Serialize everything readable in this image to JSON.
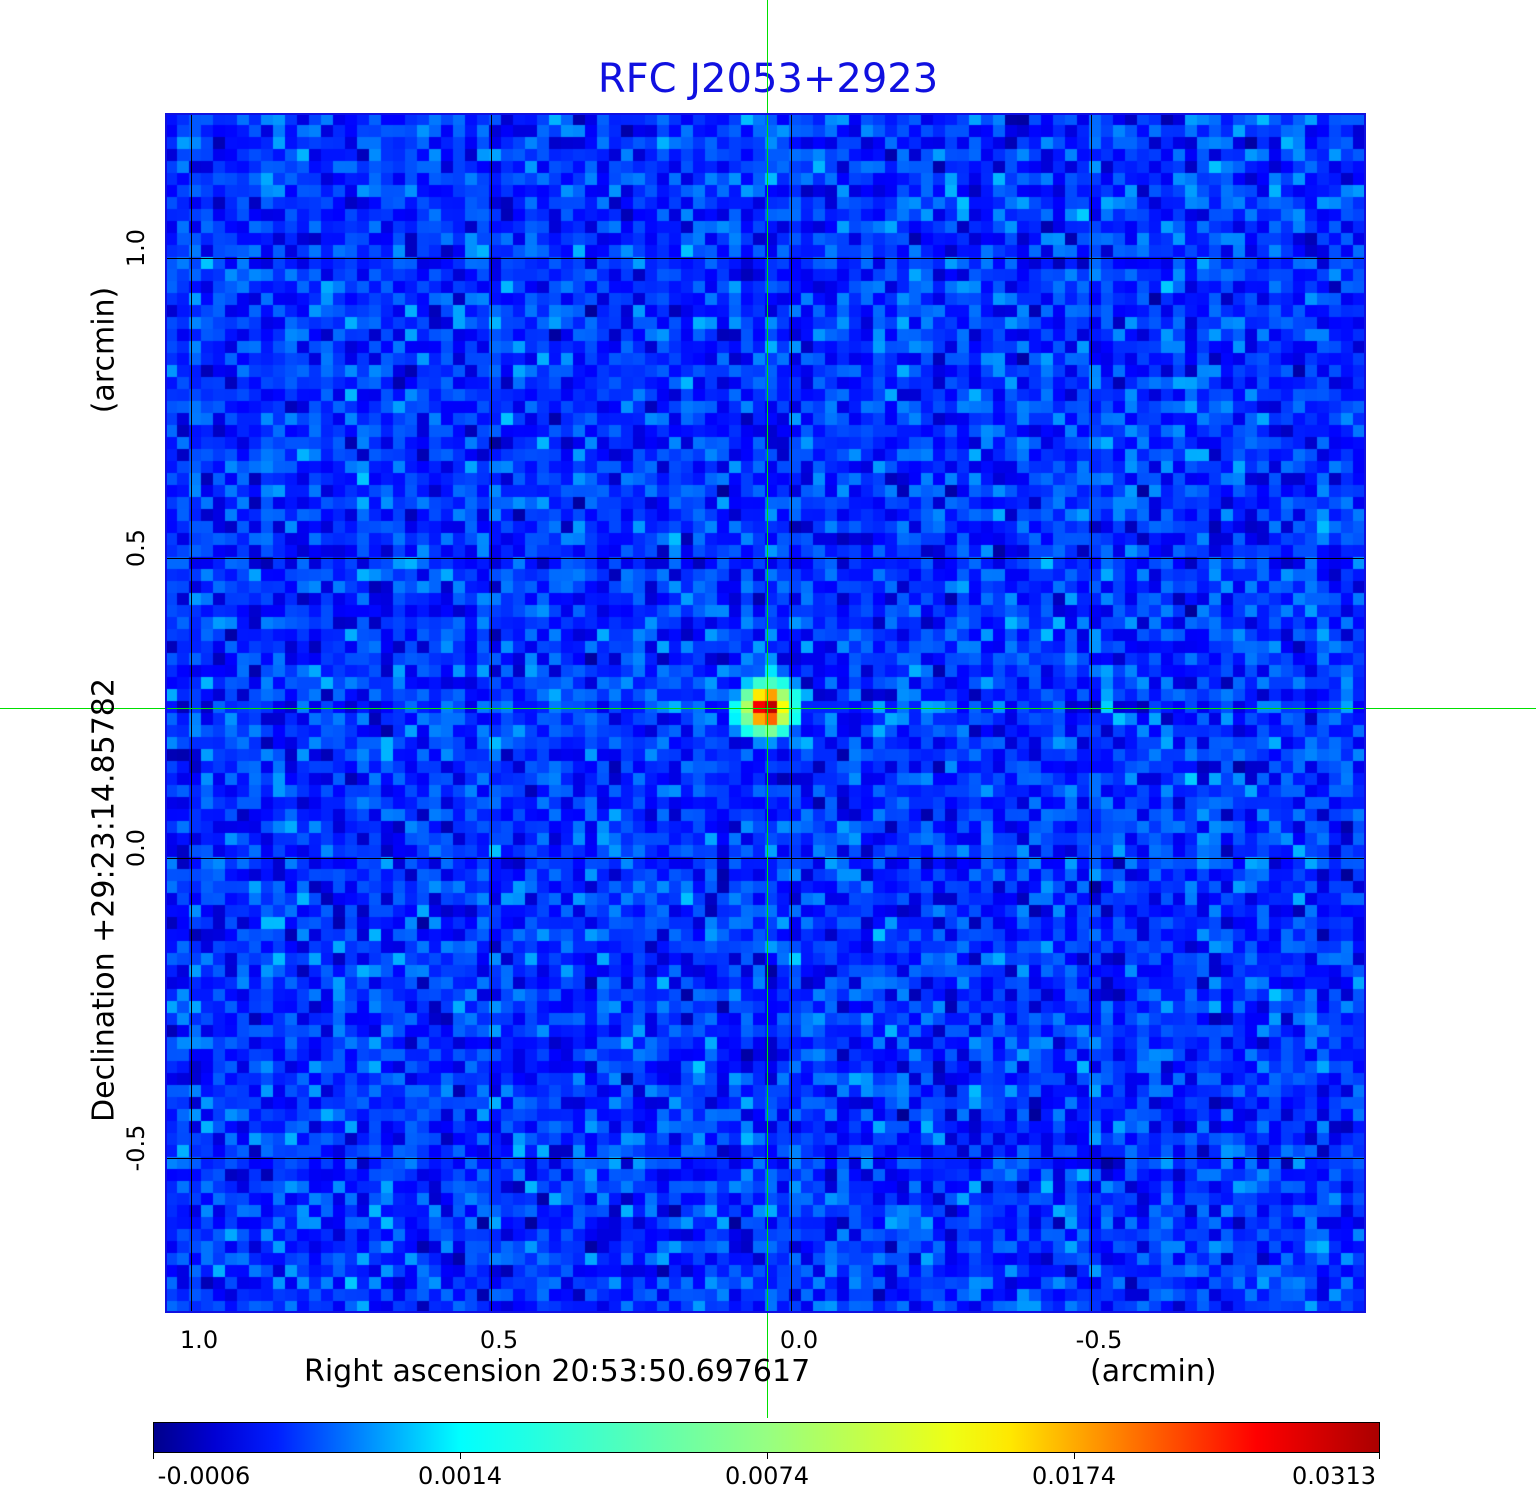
{
  "chart_data": {
    "type": "heatmap",
    "title": "RFC J2053+2923",
    "xlabel": "Right ascension  20:53:50.697617",
    "xunit": "(arcmin)",
    "ylabel": "Declination  +29:23:14.85782",
    "yunit": "(arcmin)",
    "xlim": [
      1.09,
      -0.91
    ],
    "ylim": [
      -0.91,
      1.09
    ],
    "x_ticks": [
      "1.0",
      "0.5",
      "0.0",
      "-0.5"
    ],
    "x_tick_values": [
      1.0,
      0.5,
      0.0,
      -0.5
    ],
    "y_ticks": [
      "1.0",
      "0.5",
      "0.0",
      "-0.5"
    ],
    "y_tick_values": [
      1.0,
      0.5,
      0.0,
      -0.5
    ],
    "grid": true,
    "grid_color": "#000000",
    "crosshair_color": "#00e000",
    "crosshair": {
      "x": 0.04,
      "y": 0.25
    },
    "source": {
      "x": 0.04,
      "y": 0.25,
      "peak": 0.0313
    },
    "background_level": 0.0003,
    "colormap": "jet",
    "colorbar": {
      "placement": "bottom",
      "tick_labels": [
        "-0.0006",
        "0.0014",
        "0.0074",
        "0.0174",
        "0.0313"
      ],
      "tick_values": [
        -0.0006,
        0.0014,
        0.0074,
        0.0174,
        0.0313
      ]
    }
  }
}
